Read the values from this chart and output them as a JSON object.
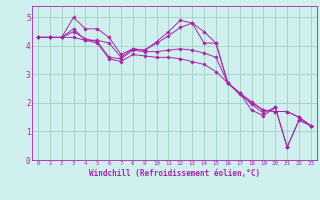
{
  "xlabel": "Windchill (Refroidissement éolien,°C)",
  "bg_color": "#cff0ee",
  "line_color": "#aa22aa",
  "grid_color": "#99ccbb",
  "xlim": [
    -0.5,
    23.5
  ],
  "ylim": [
    0,
    5.4
  ],
  "xticks": [
    0,
    1,
    2,
    3,
    4,
    5,
    6,
    7,
    8,
    9,
    10,
    11,
    12,
    13,
    14,
    15,
    16,
    17,
    18,
    19,
    20,
    21,
    22,
    23
  ],
  "yticks": [
    0,
    1,
    2,
    3,
    4,
    5
  ],
  "series": [
    [
      4.3,
      4.3,
      4.3,
      4.6,
      4.2,
      4.2,
      4.1,
      3.6,
      3.9,
      3.85,
      4.1,
      4.35,
      4.65,
      4.8,
      4.5,
      4.1,
      2.7,
      2.35,
      1.95,
      1.65,
      1.85,
      0.45,
      1.4,
      1.2
    ],
    [
      4.3,
      4.3,
      4.3,
      4.5,
      4.25,
      4.15,
      3.6,
      3.55,
      3.85,
      3.8,
      3.8,
      3.85,
      3.9,
      3.85,
      3.75,
      3.6,
      2.7,
      2.35,
      2.05,
      1.75,
      1.7,
      1.7,
      1.5,
      1.2
    ],
    [
      4.3,
      4.3,
      4.3,
      4.3,
      4.2,
      4.1,
      3.55,
      3.45,
      3.7,
      3.65,
      3.6,
      3.6,
      3.55,
      3.45,
      3.35,
      3.1,
      2.7,
      2.3,
      2.0,
      1.75,
      1.7,
      1.7,
      1.5,
      1.2
    ],
    [
      4.3,
      4.3,
      4.3,
      5.0,
      4.6,
      4.6,
      4.3,
      3.7,
      3.9,
      3.85,
      4.15,
      4.5,
      4.9,
      4.8,
      4.1,
      4.1,
      2.7,
      2.35,
      1.75,
      1.55,
      1.85,
      0.45,
      1.4,
      1.2
    ]
  ],
  "figsize": [
    3.2,
    2.0
  ],
  "dpi": 100,
  "xlabel_fontsize": 5.5,
  "tick_fontsize_x": 4.2,
  "tick_fontsize_y": 5.5
}
